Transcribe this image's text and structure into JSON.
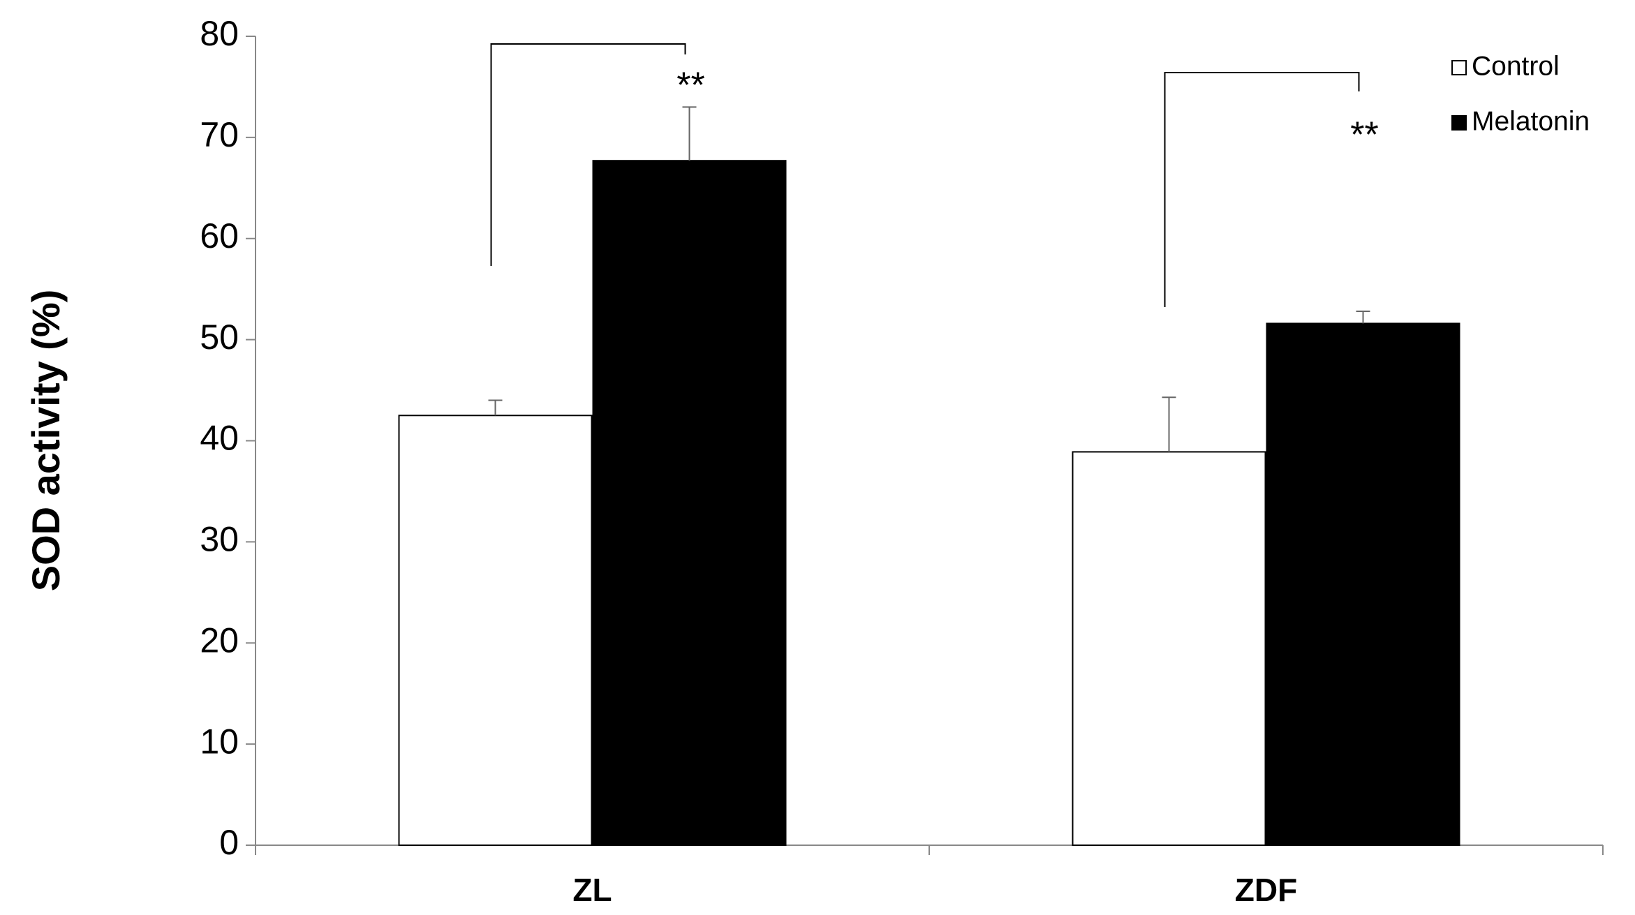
{
  "chart_data": {
    "type": "bar",
    "y_label": "SOD activity (%)",
    "categories": [
      "ZL",
      "ZDF"
    ],
    "series": [
      {
        "name": "Control",
        "color": "#ffffff",
        "values": [
          42.5,
          38.9
        ],
        "errors": [
          1.5,
          5.4
        ]
      },
      {
        "name": "Melatonin",
        "color": "#000000",
        "values": [
          67.7,
          51.6
        ],
        "errors": [
          5.3,
          1.2
        ]
      }
    ],
    "ylim": [
      0,
      80
    ],
    "yticks": [
      0,
      10,
      20,
      30,
      40,
      50,
      60,
      70,
      80
    ],
    "annotations": [
      "**",
      "**"
    ],
    "legend": "top-right"
  }
}
